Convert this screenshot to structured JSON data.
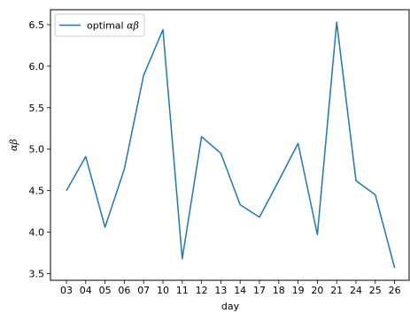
{
  "chart_data": {
    "type": "line",
    "title": "",
    "xlabel": "day",
    "ylabel": "αβ",
    "categories": [
      "03",
      "04",
      "05",
      "06",
      "07",
      "10",
      "11",
      "12",
      "13",
      "14",
      "17",
      "18",
      "19",
      "20",
      "21",
      "24",
      "25",
      "26"
    ],
    "series": [
      {
        "name": "optimal αβ",
        "color": "#1f77b4",
        "values": [
          4.5,
          4.91,
          4.06,
          4.76,
          5.89,
          6.44,
          3.68,
          5.15,
          4.95,
          4.33,
          4.18,
          4.62,
          5.07,
          3.97,
          6.53,
          4.62,
          4.45,
          3.57
        ]
      }
    ],
    "yticks": [
      3.5,
      4.0,
      4.5,
      5.0,
      5.5,
      6.0,
      6.5
    ],
    "ytick_labels": [
      "3.5",
      "4.0",
      "4.5",
      "5.0",
      "5.5",
      "6.0",
      "6.5"
    ],
    "ylim": [
      3.42,
      6.68
    ],
    "grid": false,
    "legend_position": "upper-left",
    "legend": {
      "prefix": "optimal ",
      "symbol": "αβ"
    }
  }
}
